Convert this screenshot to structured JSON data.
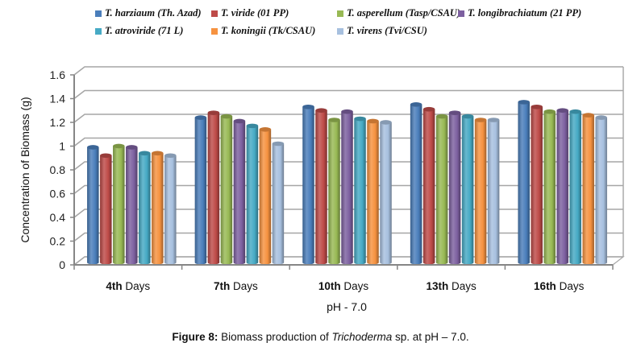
{
  "chart_data": {
    "type": "bar",
    "style": "3d-cylinder",
    "title": "",
    "xlabel": "pH - 7.0",
    "ylabel": "Concentration of Biomass (g)",
    "ylim": [
      0,
      1.6
    ],
    "yticks": [
      "0",
      "0.2",
      "0.4",
      "0.6",
      "0.8",
      "1",
      "1.2",
      "1.4",
      "1.6"
    ],
    "ytick_values": [
      0,
      0.2,
      0.4,
      0.6,
      0.8,
      1.0,
      1.2,
      1.4,
      1.6
    ],
    "grid": true,
    "legend_position": "top",
    "categories": [
      {
        "bold": "4th",
        "rest": " Days"
      },
      {
        "bold": "7th",
        "rest": " Days"
      },
      {
        "bold": "10th",
        "rest": " Days"
      },
      {
        "bold": "13th",
        "rest": " Days"
      },
      {
        "bold": "16th",
        "rest": " Days"
      }
    ],
    "category_labels": [
      "4th Days",
      "7th Days",
      "10th Days",
      "13th Days",
      "16th Days"
    ],
    "series": [
      {
        "name": "T. harziaum (Th. Azad)",
        "color": "#4a7ebb",
        "values": [
          0.97,
          1.22,
          1.31,
          1.33,
          1.35
        ]
      },
      {
        "name": "T. viride (01 PP)",
        "color": "#be4b48",
        "values": [
          0.9,
          1.26,
          1.28,
          1.29,
          1.31
        ]
      },
      {
        "name": "T. asperellum (Tasp/CSAU)",
        "color": "#98b954",
        "values": [
          0.98,
          1.23,
          1.2,
          1.23,
          1.27
        ]
      },
      {
        "name": "T. longibrachiatum (21 PP)",
        "color": "#7d60a0",
        "values": [
          0.97,
          1.19,
          1.27,
          1.26,
          1.28
        ]
      },
      {
        "name": "T. atroviride (71 L)",
        "color": "#46aac5",
        "values": [
          0.92,
          1.15,
          1.21,
          1.23,
          1.27
        ]
      },
      {
        "name": "T. koningii (Tk/CSAU)",
        "color": "#f69240",
        "values": [
          0.92,
          1.12,
          1.19,
          1.2,
          1.24
        ]
      },
      {
        "name": "T. virens (Tvi/CSU)",
        "color": "#a7c0df",
        "values": [
          0.9,
          1.0,
          1.18,
          1.2,
          1.22
        ]
      }
    ]
  },
  "caption": {
    "figure_label": "Figure 8:",
    "text_before": " Biomass production of ",
    "italic": "Trichoderma",
    "text_after": " sp. at pH – 7.0."
  }
}
